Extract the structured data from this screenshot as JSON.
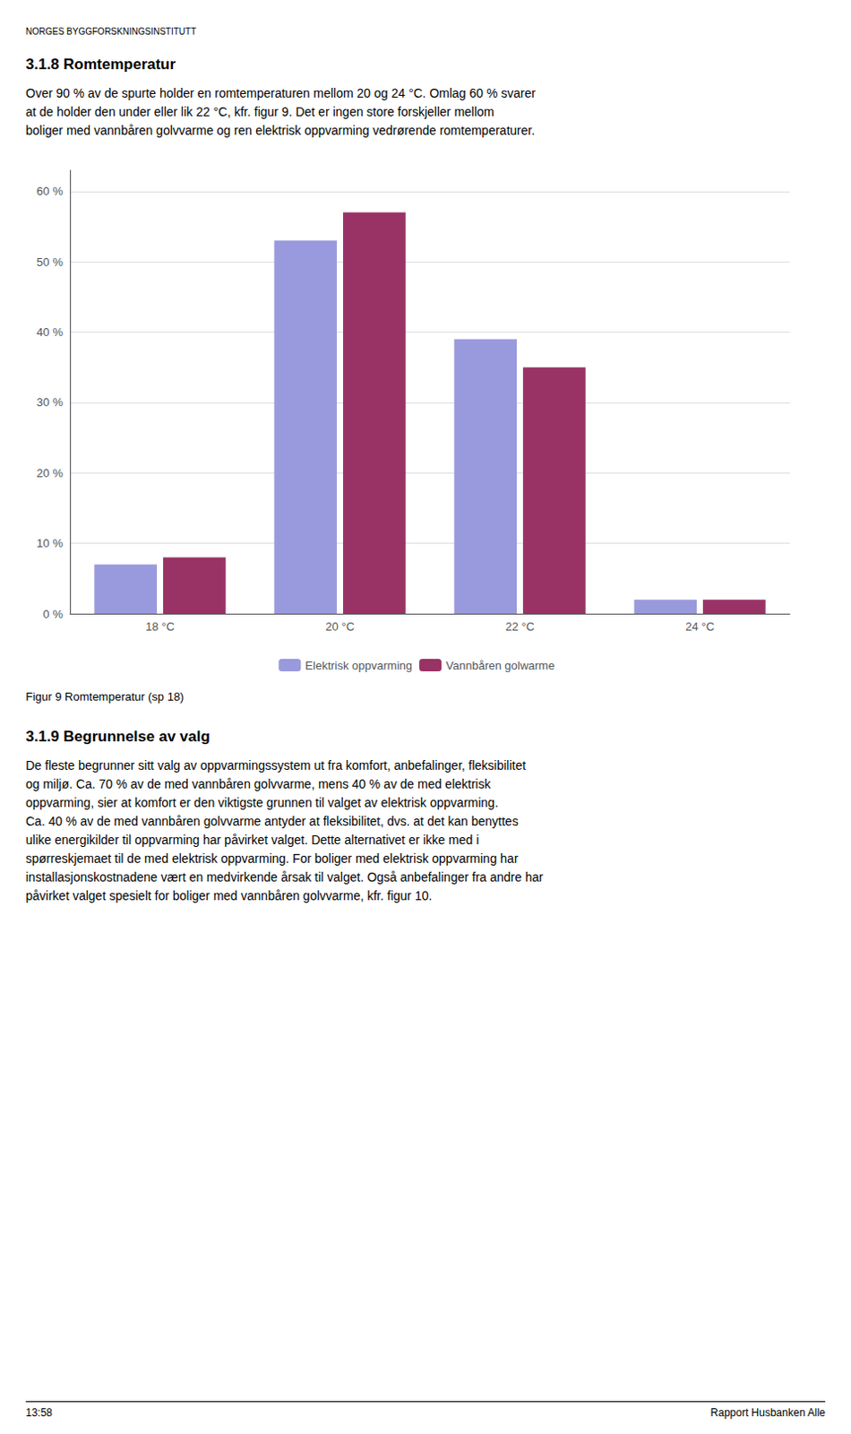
{
  "header": "NORGES BYGGFORSKNINGSINSTITUTT",
  "section_title": "3.1.8  Romtemperatur",
  "section_text": "Over 90 % av de spurte holder en romtemperaturen mellom 20 og 24 °C. Omlag 60 % svarer\nat de holder den under eller lik 22 °C, kfr. figur 9. Det er ingen store forskjeller mellom\nboliger med vannbåren golvvarme og ren elektrisk oppvarming vedrørende romtemperaturer.",
  "figure_caption": "Figur 9 Romtemperatur (sp 18)",
  "section2_title": "3.1.9  Begrunnelse av valg",
  "section2_text": "De fleste begrunner sitt valg av oppvarmingssystem ut fra komfort, anbefalinger, fleksibilitet\nog miljø. Ca. 70 % av de med vannbåren golvvarme, mens 40 % av de med elektrisk\noppvarming, sier at komfort er den viktigste grunnen til valget av elektrisk oppvarming.\nCa. 40 % av de med vannbåren golvvarme antyder at fleksibilitet, dvs. at det kan benyttes\nulike energikilder til oppvarming har påvirket valget. Dette alternativet er ikke med i\nspørreskjemaet til de med elektrisk oppvarming. For boliger med elektrisk oppvarming har\ninstallasjonskostnadene vært en medvirkende årsak til valget. Også anbefalinger fra andre har\npåvirket valget spesielt for boliger med vannbåren golvvarme, kfr. figur 10.",
  "footer_left": "13:58",
  "footer_right": "Rapport Husbanken Alle",
  "chart_data": {
    "type": "bar",
    "categories": [
      "18 °C",
      "20 °C",
      "22 °C",
      "24 °C"
    ],
    "series": [
      {
        "name": "Elektrisk oppvarming",
        "color": "#9999DD",
        "values": [
          7,
          53,
          39,
          2
        ]
      },
      {
        "name": "Vannbåren golwarme",
        "color": "#993366",
        "values": [
          8,
          57,
          35,
          2
        ]
      }
    ],
    "ylim": [
      0,
      63
    ],
    "yticks": [
      {
        "value": 0,
        "label": "0 %"
      },
      {
        "value": 10,
        "label": "10 %"
      },
      {
        "value": 20,
        "label": "20 %"
      },
      {
        "value": 30,
        "label": "30 %"
      },
      {
        "value": 40,
        "label": "40 %"
      },
      {
        "value": 50,
        "label": "50 %"
      },
      {
        "value": 60,
        "label": "60 %"
      }
    ],
    "grid": true,
    "legend": "bottom"
  }
}
